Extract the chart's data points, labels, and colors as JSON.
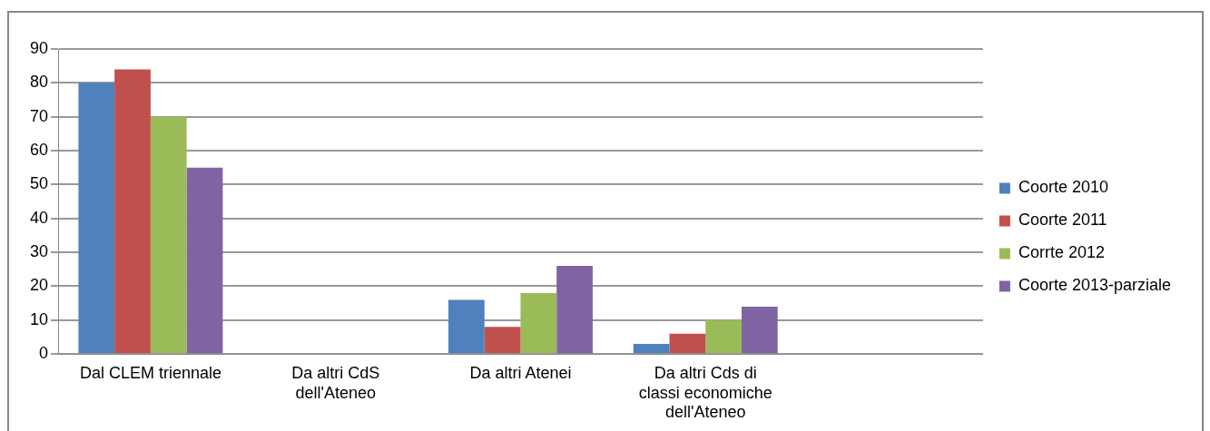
{
  "chart_data": {
    "type": "bar",
    "categories": [
      "Dal CLEM triennale",
      "Da altri CdS dell'Ateneo",
      "Da altri Atenei",
      "Da altri Cds di classi economiche dell'Ateneo",
      null
    ],
    "series": [
      {
        "name": "Coorte 2010",
        "color": "#4f81bd",
        "values": [
          80,
          0,
          16,
          3,
          null
        ]
      },
      {
        "name": "Coorte 2011",
        "color": "#c0504d",
        "values": [
          84,
          0,
          8,
          6,
          null
        ]
      },
      {
        "name": "Corrte 2012",
        "color": "#9bbb59",
        "values": [
          70,
          0,
          18,
          10,
          null
        ]
      },
      {
        "name": "Coorte 2013-parziale",
        "color": "#8064a2",
        "values": [
          55,
          0,
          26,
          14,
          null
        ]
      }
    ],
    "ylim": [
      0,
      90
    ],
    "yticks": [
      0,
      10,
      20,
      30,
      40,
      50,
      60,
      70,
      80,
      90
    ],
    "grid": "y",
    "legend": "right"
  }
}
